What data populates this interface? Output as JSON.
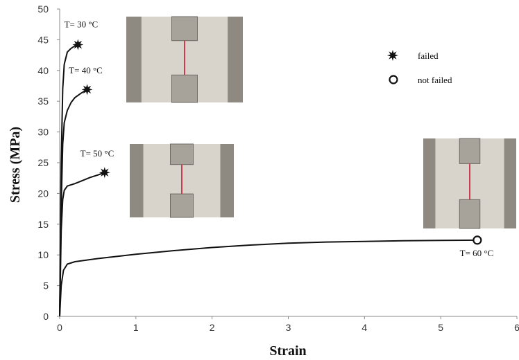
{
  "chart_data": {
    "type": "line",
    "title": "",
    "xlabel": "Strain",
    "ylabel": "Stress (MPa)",
    "xlim": [
      0,
      6
    ],
    "ylim": [
      0,
      50
    ],
    "x_ticks": [
      0,
      1,
      2,
      3,
      4,
      5,
      6
    ],
    "y_ticks": [
      0,
      5,
      10,
      15,
      20,
      25,
      30,
      35,
      40,
      45,
      50
    ],
    "grid": false,
    "series": [
      {
        "name": "T= 30 °C",
        "end": "failed",
        "points": [
          [
            0,
            0
          ],
          [
            0.02,
            25
          ],
          [
            0.04,
            37
          ],
          [
            0.06,
            41
          ],
          [
            0.1,
            43
          ],
          [
            0.15,
            43.6
          ],
          [
            0.2,
            44
          ],
          [
            0.24,
            44.2
          ]
        ]
      },
      {
        "name": "T= 40 °C",
        "end": "failed",
        "points": [
          [
            0,
            0
          ],
          [
            0.02,
            18
          ],
          [
            0.04,
            28
          ],
          [
            0.06,
            31.5
          ],
          [
            0.1,
            33.5
          ],
          [
            0.15,
            34.8
          ],
          [
            0.2,
            35.6
          ],
          [
            0.28,
            36.3
          ],
          [
            0.36,
            36.9
          ]
        ]
      },
      {
        "name": "T= 50 °C",
        "end": "failed",
        "points": [
          [
            0,
            0
          ],
          [
            0.02,
            14
          ],
          [
            0.04,
            19
          ],
          [
            0.06,
            20.5
          ],
          [
            0.1,
            21.2
          ],
          [
            0.2,
            21.6
          ],
          [
            0.3,
            22.1
          ],
          [
            0.4,
            22.6
          ],
          [
            0.5,
            23
          ],
          [
            0.59,
            23.4
          ]
        ]
      },
      {
        "name": "T= 60 °C",
        "end": "not failed",
        "points": [
          [
            0,
            0
          ],
          [
            0.02,
            5
          ],
          [
            0.05,
            7.5
          ],
          [
            0.1,
            8.5
          ],
          [
            0.2,
            8.9
          ],
          [
            0.5,
            9.4
          ],
          [
            1,
            10.1
          ],
          [
            1.5,
            10.7
          ],
          [
            2,
            11.2
          ],
          [
            2.5,
            11.6
          ],
          [
            3,
            11.9
          ],
          [
            3.5,
            12.1
          ],
          [
            4,
            12.2
          ],
          [
            4.5,
            12.3
          ],
          [
            5,
            12.35
          ],
          [
            5.48,
            12.4
          ]
        ]
      }
    ],
    "legend": {
      "position": "top-right",
      "items": [
        {
          "label": "failed",
          "marker": "star-burst"
        },
        {
          "label": "not failed",
          "marker": "open-circle"
        }
      ]
    },
    "annotations": [
      {
        "text": "T= 30 °C",
        "x": 0.06,
        "y": 47
      },
      {
        "text": "T= 40 °C",
        "x": 0.12,
        "y": 39.5
      },
      {
        "text": "T= 50 °C",
        "x": 0.27,
        "y": 26
      },
      {
        "text": "T= 60 °C",
        "x": 5.25,
        "y": 9.8
      }
    ],
    "inset_photos": 3,
    "colors": {
      "line": "#111111",
      "axis": "#888888",
      "photo_background": "#d8d4cc",
      "photo_frame": "#8e8a82",
      "specimen": "#cc3b4e"
    }
  }
}
